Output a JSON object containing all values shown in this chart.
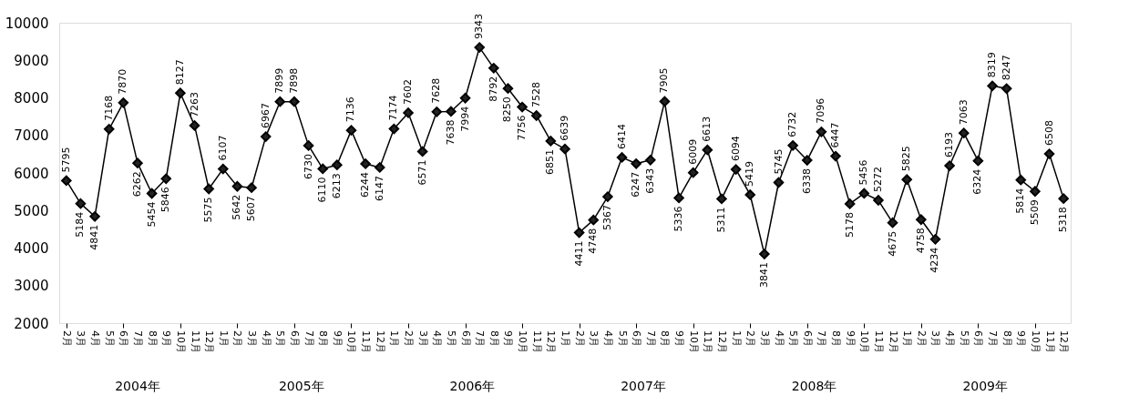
{
  "chart_data": {
    "type": "line",
    "categories": [
      "2月",
      "3月",
      "4月",
      "5月",
      "6月",
      "7月",
      "8月",
      "9月",
      "10月",
      "11月",
      "12月",
      "1月",
      "2月",
      "3月",
      "4月",
      "5月",
      "6月",
      "7月",
      "8月",
      "9月",
      "10月",
      "11月",
      "12月",
      "1月",
      "2月",
      "3月",
      "4月",
      "5月",
      "6月",
      "7月",
      "8月",
      "9月",
      "10月",
      "11月",
      "12月",
      "1月",
      "2月",
      "3月",
      "4月",
      "5月",
      "6月",
      "7月",
      "8月",
      "9月",
      "10月",
      "11月",
      "12月",
      "1月",
      "2月",
      "3月",
      "4月",
      "5月",
      "6月",
      "7月",
      "8月",
      "9月",
      "10月",
      "11月",
      "12月",
      "1月",
      "2月",
      "3月",
      "4月",
      "5月",
      "6月",
      "7月",
      "8月",
      "9月",
      "10月",
      "11月",
      "12月"
    ],
    "series": [
      {
        "color": "#000000",
        "values": [
          5795,
          5184,
          4841,
          7168,
          7870,
          6262,
          5454,
          5846,
          8127,
          7263,
          5575,
          6107,
          5642,
          5607,
          6967,
          7899,
          7898,
          6730,
          6110,
          6213,
          7136,
          6244,
          6147,
          7174,
          7602,
          6571,
          7628,
          7638,
          7994,
          9343,
          8792,
          8250,
          7756,
          7528,
          6851,
          6639,
          4411,
          4748,
          5367,
          6414,
          6247,
          6343,
          7905,
          5336,
          6009,
          6613,
          5311,
          6094,
          5419,
          3841,
          5745,
          6732,
          6338,
          7096,
          6447,
          5178,
          5456,
          5272,
          4675,
          5825,
          4758,
          4234,
          6193,
          7063,
          6324,
          8319,
          8247,
          5814,
          5509,
          6508,
          5318
        ]
      }
    ],
    "ylim": [
      2000,
      10000
    ],
    "yticks": [
      2000,
      3000,
      4000,
      5000,
      6000,
      7000,
      8000,
      9000,
      10000
    ],
    "annotations": [
      "2004年",
      "2005年",
      "2006年",
      "2007年",
      "2008年",
      "2009年"
    ],
    "data_labels": true,
    "marker": "diamond",
    "grid": false
  }
}
